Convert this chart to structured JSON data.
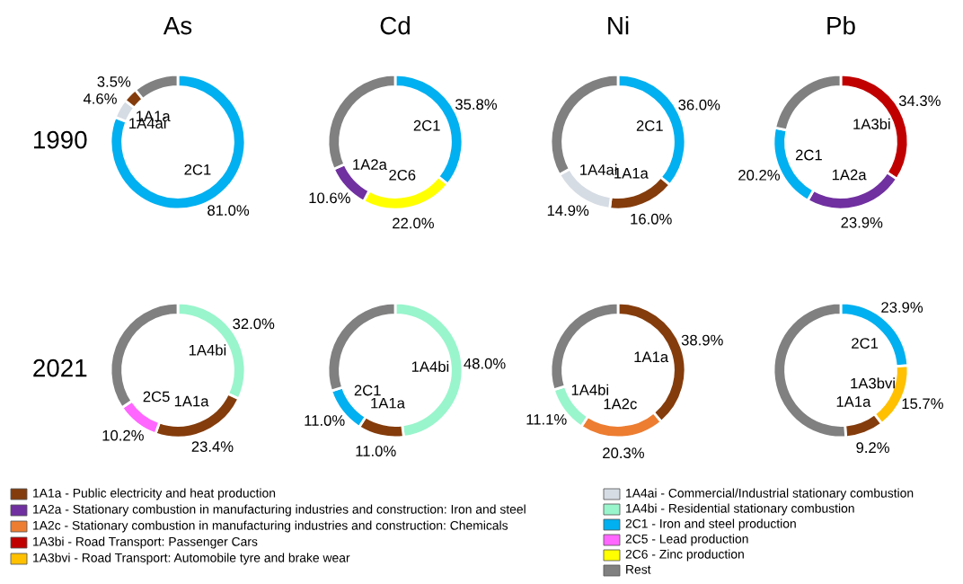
{
  "chart_data": [
    {
      "type": "donut",
      "title": "As",
      "ylabel": "1990",
      "categories": [
        "2C1",
        "1A4ai",
        "1A1a",
        null
      ],
      "values": [
        81.0,
        4.6,
        3.5,
        10.9
      ],
      "colors": [
        "#00b0f0",
        "#d6dce4",
        "#843c0c",
        "#808080"
      ],
      "value_labels": [
        "81.0%",
        "4.6%",
        "3.5%",
        null
      ]
    },
    {
      "type": "donut",
      "title": "Cd",
      "categories": [
        "2C1",
        "2C6",
        "1A2a",
        null
      ],
      "values": [
        35.8,
        22.0,
        10.6,
        31.6
      ],
      "colors": [
        "#00b0f0",
        "#ffff00",
        "#7030a0",
        "#808080"
      ],
      "value_labels": [
        "35.8%",
        "22.0%",
        "10.6%",
        null
      ]
    },
    {
      "type": "donut",
      "title": "Ni",
      "categories": [
        "2C1",
        "1A1a",
        "1A4ai",
        null
      ],
      "values": [
        36.0,
        16.0,
        14.9,
        33.1
      ],
      "colors": [
        "#00b0f0",
        "#843c0c",
        "#d6dce4",
        "#808080"
      ],
      "value_labels": [
        "36.0%",
        "16.0%",
        "14.9%",
        null
      ]
    },
    {
      "type": "donut",
      "title": "Pb",
      "categories": [
        "1A3bi",
        "1A2a",
        "2C1",
        null
      ],
      "values": [
        34.3,
        23.9,
        20.2,
        21.6
      ],
      "colors": [
        "#c00000",
        "#7030a0",
        "#00b0f0",
        "#808080"
      ],
      "value_labels": [
        "34.3%",
        "23.9%",
        "20.2%",
        null
      ]
    },
    {
      "type": "donut",
      "ylabel": "2021",
      "categories": [
        "1A4bi",
        "1A1a",
        "2C5",
        null
      ],
      "values": [
        32.0,
        23.4,
        10.2,
        34.4
      ],
      "colors": [
        "#99f5cc",
        "#843c0c",
        "#ff66ff",
        "#808080"
      ],
      "value_labels": [
        "32.0%",
        "23.4%",
        "10.2%",
        null
      ]
    },
    {
      "type": "donut",
      "categories": [
        "1A4bi",
        "1A1a",
        "2C1",
        null
      ],
      "values": [
        48.0,
        11.0,
        11.0,
        30.0
      ],
      "colors": [
        "#99f5cc",
        "#843c0c",
        "#00b0f0",
        "#808080"
      ],
      "value_labels": [
        "48.0%",
        "11.0%",
        "11.0%",
        null
      ]
    },
    {
      "type": "donut",
      "categories": [
        "1A1a",
        "1A2c",
        "1A4bi",
        null
      ],
      "values": [
        38.9,
        20.3,
        11.1,
        29.7
      ],
      "colors": [
        "#843c0c",
        "#ed7d31",
        "#99f5cc",
        "#808080"
      ],
      "value_labels": [
        "38.9%",
        "20.3%",
        "11.1%",
        null
      ]
    },
    {
      "type": "donut",
      "categories": [
        "2C1",
        "1A3bvi",
        "1A1a",
        null
      ],
      "values": [
        23.9,
        15.7,
        9.2,
        51.2
      ],
      "colors": [
        "#00b0f0",
        "#ffc000",
        "#843c0c",
        "#808080"
      ],
      "value_labels": [
        "23.9%",
        "15.7%",
        "9.2%",
        null
      ]
    },
    {
      "type": "other",
      "categories": [
        "1A1a - Public electricity and heat production",
        "1A2a - Stationary combustion in manufacturing industries and construction: Iron and steel",
        "1A2c - Stationary combustion in manufacturing industries and construction: Chemicals",
        "1A3bi - Road Transport: Passenger Cars",
        "1A3bvi - Road Transport: Automobile tyre and brake wear",
        "1A4ai - Commercial/Industrial stationary combustion",
        "1A4bi - Residential stationary combustion",
        "2C1 - Iron and steel production",
        "2C5 - Lead production",
        "2C6 - Zinc production",
        "Rest"
      ],
      "colors": [
        "#843c0c",
        "#7030a0",
        "#ed7d31",
        "#c00000",
        "#ffc000",
        "#d6dce4",
        "#99f5cc",
        "#00b0f0",
        "#ff66ff",
        "#ffff00",
        "#808080"
      ]
    }
  ]
}
